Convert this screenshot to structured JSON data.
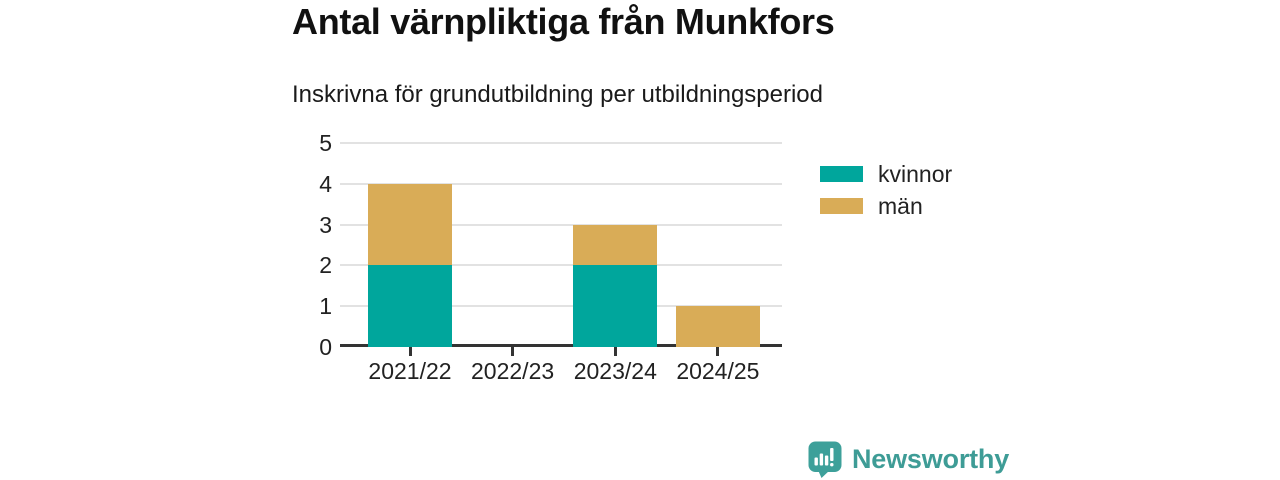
{
  "title": "Antal värnpliktiga från Munkfors",
  "subtitle": "Inskrivna för grundutbildning per utbildningsperiod",
  "branding": {
    "logo_text": "Newsworthy",
    "icon": "newsworthy-speech-bubble-bar-chart-icon",
    "icon_color": "#3DA09A",
    "text_color": "#3E9C96"
  },
  "colors": {
    "kvinnor": "#00A69C",
    "man": "#D9AC57",
    "axis": "#333333",
    "grid": "#E2E2E2",
    "text": "#222222",
    "title_text": "#111111"
  },
  "chart_data": {
    "type": "bar",
    "stacked": true,
    "title": "Antal värnpliktiga från Munkfors",
    "subtitle": "Inskrivna för grundutbildning per utbildningsperiod",
    "categories": [
      "2021/22",
      "2022/23",
      "2023/24",
      "2024/25"
    ],
    "series": [
      {
        "name": "kvinnor",
        "color": "#00A69C",
        "values": [
          2,
          0,
          2,
          0
        ]
      },
      {
        "name": "män",
        "color": "#D9AC57",
        "values": [
          2,
          0,
          1,
          1
        ]
      }
    ],
    "totals": [
      4,
      0,
      3,
      1
    ],
    "xlabel": "",
    "ylabel": "",
    "ylim": [
      0,
      5
    ],
    "yticks": [
      0,
      1,
      2,
      3,
      4,
      5
    ],
    "grid": true,
    "legend_position": "right"
  }
}
